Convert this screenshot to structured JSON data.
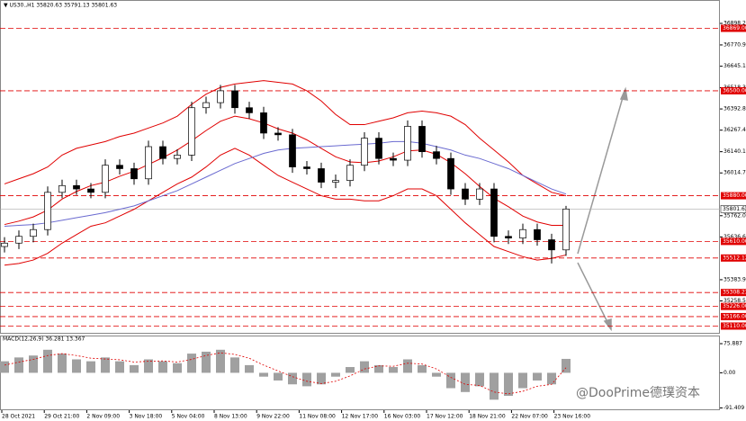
{
  "chart_data": {
    "type": "candlestick",
    "title": "▼ US30.,H1  35820.63 35791.13 35801.63",
    "ylim": [
      35070,
      37031
    ],
    "yticks": [
      {
        "value": 36898.2,
        "label": "36898.20"
      },
      {
        "value": 36770.9,
        "label": "36770.90"
      },
      {
        "value": 36645.15,
        "label": "36645.15"
      },
      {
        "value": 36518.3,
        "label": "36518.30"
      },
      {
        "value": 36392.8,
        "label": "36392.80"
      },
      {
        "value": 36267.4,
        "label": "36267.40"
      },
      {
        "value": 36140.1,
        "label": "36140.10"
      },
      {
        "value": 36014.7,
        "label": "36014.70"
      },
      {
        "value": 35762,
        "label": "35762.00"
      },
      {
        "value": 35636.6,
        "label": "35636.60"
      },
      {
        "value": 35383.9,
        "label": "35383.90"
      },
      {
        "value": 35258.5,
        "label": "35258.50"
      }
    ],
    "levels": [
      {
        "value": 36869,
        "label": "36869.00"
      },
      {
        "value": 36500,
        "label": "36500.00"
      },
      {
        "value": 35880,
        "label": "35880.00"
      },
      {
        "value": 35610,
        "label": "35610.00"
      },
      {
        "value": 35512.12,
        "label": "35512.12"
      },
      {
        "value": 35308.23,
        "label": "35308.23"
      },
      {
        "value": 35226,
        "label": "35226.00"
      },
      {
        "value": 35166,
        "label": "35166.00"
      },
      {
        "value": 35110,
        "label": "35110.00"
      }
    ],
    "level_color": "#e00000",
    "last": {
      "value": 35801.63,
      "label": "35801.63"
    },
    "open": [
      35580,
      35600,
      35640,
      35680,
      35900,
      35940,
      35920,
      35900,
      36060,
      36040,
      35980,
      36170,
      36100,
      36120,
      36400,
      36430,
      36500,
      36400,
      36370,
      36250,
      36240,
      36050,
      36040,
      35960,
      35970,
      36060,
      36220,
      36100,
      36090,
      36290,
      36140,
      36100,
      35920,
      35860,
      35920,
      35640,
      35630,
      35680,
      35620,
      35560
    ],
    "high": [
      35635,
      35675,
      35715,
      35935,
      35975,
      35975,
      35955,
      36095,
      36095,
      36075,
      36205,
      36205,
      36155,
      36435,
      36465,
      36535,
      36535,
      36435,
      36405,
      36285,
      36275,
      36085,
      36075,
      36005,
      36095,
      36255,
      36255,
      36135,
      36325,
      36325,
      36175,
      36135,
      35955,
      35955,
      35955,
      35675,
      35715,
      35715,
      35655,
      35820
    ],
    "low": [
      35545,
      35565,
      35605,
      35645,
      35865,
      35885,
      35865,
      35865,
      36005,
      35945,
      35945,
      36065,
      36065,
      36085,
      36365,
      36395,
      36365,
      36335,
      36215,
      36205,
      36015,
      36005,
      35925,
      35925,
      35935,
      36025,
      36065,
      36055,
      36055,
      36105,
      36065,
      35885,
      35825,
      35825,
      35605,
      35595,
      35595,
      35585,
      35480,
      35525
    ],
    "close": [
      35600,
      35640,
      35680,
      35900,
      35940,
      35920,
      35900,
      36060,
      36040,
      35980,
      36170,
      36100,
      36120,
      36400,
      36430,
      36500,
      36400,
      36370,
      36250,
      36240,
      36050,
      36040,
      35960,
      35970,
      36060,
      36220,
      36100,
      36090,
      36290,
      36140,
      36100,
      35920,
      35860,
      35920,
      35640,
      35630,
      35680,
      35620,
      35560,
      35801.63
    ],
    "overlays": [
      {
        "color": "#e00000",
        "values": [
          35950,
          35980,
          36010,
          36050,
          36120,
          36160,
          36180,
          36200,
          36230,
          36250,
          36280,
          36310,
          36350,
          36420,
          36480,
          36520,
          36540,
          36550,
          36560,
          36550,
          36540,
          36500,
          36440,
          36360,
          36300,
          36300,
          36320,
          36340,
          36370,
          36380,
          36370,
          36350,
          36300,
          36220,
          36150,
          36080,
          36000,
          35950,
          35900,
          35880
        ]
      },
      {
        "color": "#e00000",
        "values": [
          35710,
          35730,
          35755,
          35795,
          35860,
          35905,
          35940,
          35960,
          35995,
          36025,
          36065,
          36105,
          36150,
          36205,
          36265,
          36320,
          36350,
          36335,
          36310,
          36275,
          36250,
          36210,
          36160,
          36110,
          36080,
          36075,
          36085,
          36110,
          36145,
          36150,
          36125,
          36075,
          36010,
          35935,
          35865,
          35815,
          35760,
          35725,
          35705,
          35705
        ]
      },
      {
        "color": "#e00000",
        "values": [
          35470,
          35480,
          35500,
          35540,
          35600,
          35650,
          35700,
          35720,
          35760,
          35800,
          35850,
          35900,
          35950,
          35990,
          36050,
          36120,
          36160,
          36120,
          36060,
          36000,
          35960,
          35920,
          35880,
          35860,
          35860,
          35850,
          35850,
          35880,
          35920,
          35920,
          35880,
          35800,
          35720,
          35650,
          35580,
          35550,
          35520,
          35500,
          35510,
          35530
        ]
      },
      {
        "color": "#6a6ad0",
        "values": [
          35700,
          35705,
          35710,
          35720,
          35735,
          35750,
          35765,
          35780,
          35800,
          35820,
          35850,
          35880,
          35910,
          35950,
          35990,
          36030,
          36070,
          36100,
          36130,
          36150,
          36160,
          36165,
          36170,
          36175,
          36180,
          36185,
          36190,
          36200,
          36200,
          36190,
          36170,
          36150,
          36120,
          36100,
          36070,
          36040,
          36000,
          35960,
          35920,
          35890
        ]
      }
    ],
    "xlabels": [
      "28 Oct 2021",
      "29 Oct 21:00",
      "2 Nov 09:00",
      "3 Nov 18:00",
      "5 Nov 04:00",
      "8 Nov 13:00",
      "9 Nov 22:00",
      "11 Nov 08:00",
      "12 Nov 17:00",
      "16 Nov 03:00",
      "17 Nov 12:00",
      "18 Nov 21:00",
      "22 Nov 07:00",
      "23 Nov 16:00"
    ],
    "macd": {
      "label": "MACD(12,26,9) 36.281 13.367",
      "ylim": [
        -95,
        90
      ],
      "yticks": [
        {
          "value": 75.887,
          "label": "75.887"
        },
        {
          "value": 0,
          "label": "0.00"
        },
        {
          "value": -91.409,
          "label": "-91.409"
        }
      ],
      "hist_color": "#a0a0a0",
      "signal_color": "#e00000",
      "histogram": [
        30,
        40,
        45,
        60,
        50,
        35,
        30,
        40,
        30,
        20,
        35,
        30,
        25,
        50,
        55,
        60,
        40,
        20,
        -10,
        -20,
        -30,
        -35,
        -30,
        -10,
        15,
        30,
        20,
        15,
        35,
        20,
        -10,
        -40,
        -50,
        -35,
        -70,
        -60,
        -40,
        -20,
        -30,
        36.281
      ],
      "signal": [
        20,
        28,
        35,
        45,
        50,
        45,
        38,
        36,
        34,
        28,
        30,
        31,
        28,
        35,
        45,
        52,
        48,
        38,
        20,
        5,
        -10,
        -22,
        -28,
        -22,
        -8,
        10,
        18,
        17,
        25,
        23,
        10,
        -12,
        -30,
        -33,
        -50,
        -55,
        -48,
        -35,
        -30,
        13.367
      ]
    },
    "watermark": "@DooPrime德璞资本"
  }
}
